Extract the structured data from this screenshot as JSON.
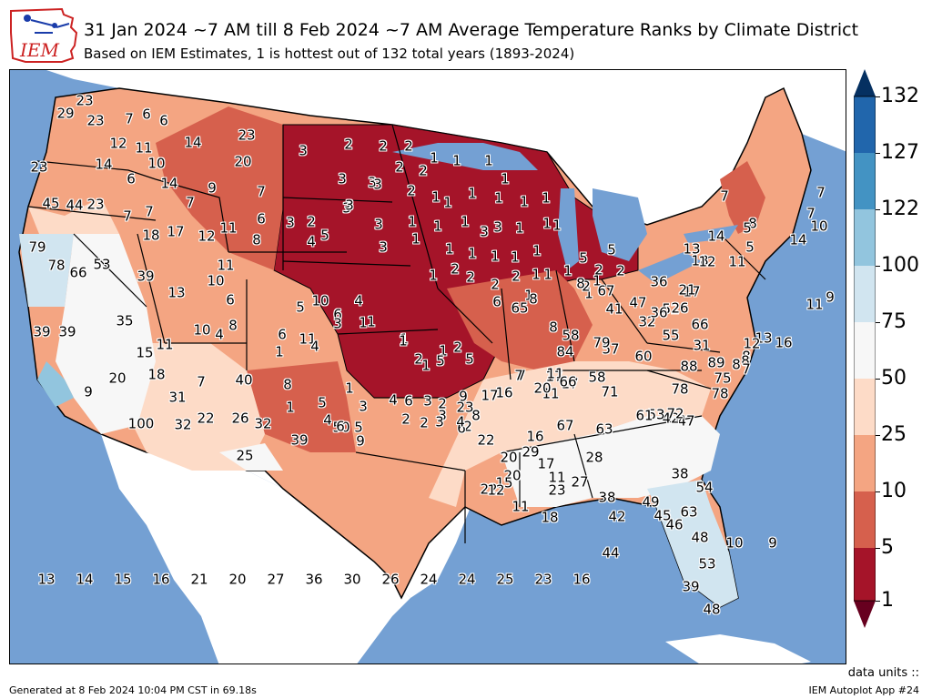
{
  "header": {
    "logo_text": "IEM",
    "title": "31 Jan 2024 ~7 AM till 8 Feb 2024 ~7 AM Average Temperature Ranks by Climate District",
    "subtitle": "Based on IEM Estimates, 1 is hottest out of 132 total years (1893-2024)"
  },
  "colorbar": {
    "ticks": [
      "1",
      "5",
      "10",
      "25",
      "50",
      "75",
      "100",
      "122",
      "127",
      "132"
    ],
    "colors": [
      "#67001f",
      "#a51429",
      "#d6604d",
      "#f4a582",
      "#fddbc7",
      "#f7f7f7",
      "#d1e5f0",
      "#92c5de",
      "#4393c3",
      "#2166ac",
      "#053061"
    ]
  },
  "colors": {
    "ocean": "#74a0d3",
    "land_outside": "#ffffff",
    "rank_1_5": "#a51429",
    "rank_5_10": "#d6604d",
    "rank_10_25": "#f4a582",
    "rank_25_50": "#fddbc7",
    "rank_50_75": "#f7f7f7",
    "rank_75_100": "#d1e5f0",
    "rank_100_122": "#92c5de"
  },
  "units_label": "data units ::",
  "footer": {
    "generated": "Generated at 8 Feb 2024 10:04 PM CST in 69.18s",
    "app": "IEM Autoplot App #24"
  },
  "districts": [
    "23",
    "29",
    "23",
    "7",
    "6",
    "6",
    "12",
    "11",
    "14",
    "23",
    "23",
    "14",
    "6",
    "10",
    "14",
    "20",
    "9",
    "7",
    "7",
    "45",
    "44",
    "23",
    "7",
    "7",
    "18",
    "17",
    "12",
    "11",
    "6",
    "8",
    "3",
    "2",
    "4",
    "3",
    "5",
    "3",
    "2",
    "2",
    "2",
    "3",
    "3",
    "2",
    "2",
    "3",
    "3",
    "2",
    "1",
    "1",
    "1",
    "1",
    "3",
    "3",
    "1",
    "1",
    "1",
    "1",
    "1",
    "1",
    "1",
    "1",
    "1",
    "3",
    "3",
    "1",
    "1",
    "1",
    "1",
    "1",
    "1",
    "1",
    "1",
    "1",
    "1",
    "2",
    "2",
    "2",
    "2",
    "1",
    "1",
    "1",
    "1",
    "1",
    "1",
    "2",
    "2",
    "2",
    "5",
    "5",
    "8",
    "79",
    "78",
    "66",
    "53",
    "39",
    "13",
    "10",
    "6",
    "11",
    "8",
    "6",
    "5",
    "10",
    "6",
    "4",
    "3",
    "1",
    "1",
    "1",
    "1",
    "2",
    "5",
    "8",
    "65",
    "39",
    "39",
    "35",
    "15",
    "11",
    "10",
    "4",
    "1",
    "1",
    "1",
    "2",
    "5",
    "6",
    "8",
    "58",
    "20",
    "18",
    "11",
    "4",
    "1",
    "1",
    "3",
    "2",
    "2",
    "8",
    "7",
    "31",
    "40",
    "8",
    "5",
    "4",
    "5",
    "2",
    "2",
    "3",
    "6",
    "9",
    "9",
    "100",
    "32",
    "22",
    "26",
    "32",
    "39",
    "25",
    "50",
    "4",
    "6",
    "3",
    "3",
    "4",
    "6",
    "9",
    "7",
    "23",
    "7",
    "11",
    "16",
    "17",
    "11",
    "17",
    "20",
    "17",
    "16",
    "22",
    "20",
    "22",
    "20",
    "29",
    "17",
    "11",
    "15",
    "12",
    "11",
    "18",
    "23",
    "27",
    "28",
    "38",
    "42",
    "44",
    "46",
    "39",
    "48",
    "53",
    "48",
    "47",
    "42",
    "53",
    "61",
    "63",
    "67",
    "72",
    "78",
    "78",
    "88",
    "89",
    "75",
    "63",
    "54",
    "49",
    "45",
    "38",
    "31",
    "55",
    "66",
    "52",
    "60",
    "57",
    "58",
    "71",
    "66",
    "84",
    "79",
    "67",
    "41",
    "47",
    "32",
    "36",
    "36",
    "26",
    "17",
    "21",
    "18",
    "14",
    "13",
    "12",
    "11",
    "7",
    "8",
    "5",
    "5",
    "14",
    "10",
    "9",
    "7",
    "7",
    "11",
    "16",
    "13",
    "12",
    "8",
    "8",
    "7",
    "8",
    "10",
    "9",
    "13",
    "14",
    "15",
    "16",
    "21",
    "20",
    "27",
    "36",
    "30",
    "26",
    "24",
    "24",
    "25",
    "23",
    "16"
  ]
}
